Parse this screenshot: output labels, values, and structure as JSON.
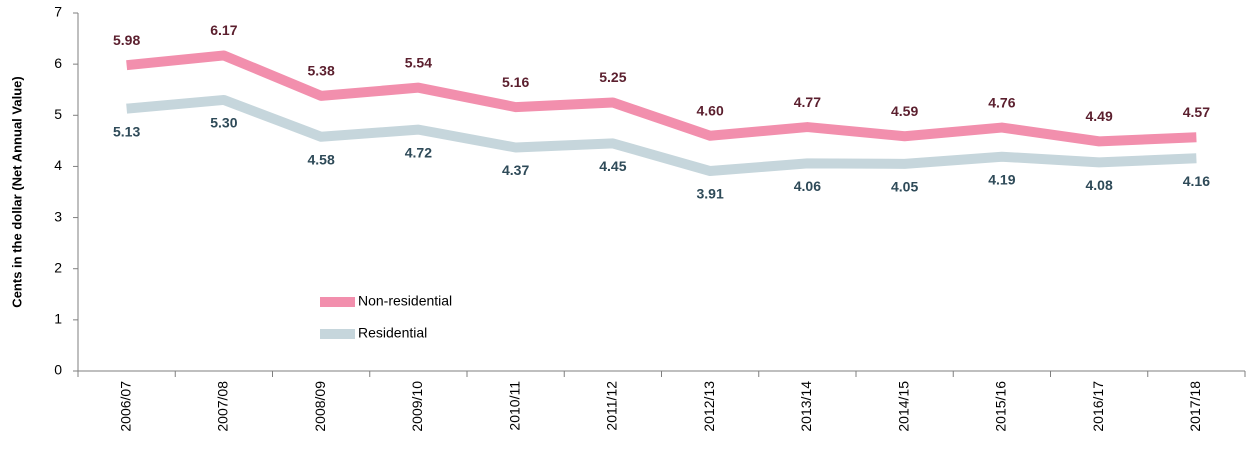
{
  "chart_data": {
    "type": "line",
    "y_label": "Cents in the dollar (Net Annual Value)",
    "categories": [
      "2006/07",
      "2007/08",
      "2008/09",
      "2009/10",
      "2010/11",
      "2011/12",
      "2012/13",
      "2013/14",
      "2014/15",
      "2015/16",
      "2016/17",
      "2017/18"
    ],
    "series": [
      {
        "name": "Non-residential",
        "color": "#f28fad",
        "label_color": "#5b1f2e",
        "values": [
          5.98,
          6.17,
          5.38,
          5.54,
          5.16,
          5.25,
          4.6,
          4.77,
          4.59,
          4.76,
          4.49,
          4.57
        ],
        "value_labels": [
          "5.98",
          "6.17",
          "5.38",
          "5.54",
          "5.16",
          "5.25",
          "4.60",
          "4.77",
          "4.59",
          "4.76",
          "4.49",
          "4.57"
        ]
      },
      {
        "name": "Residential",
        "color": "#c6d6dc",
        "label_color": "#2e4a58",
        "values": [
          5.13,
          5.3,
          4.58,
          4.72,
          4.37,
          4.45,
          3.91,
          4.06,
          4.05,
          4.19,
          4.08,
          4.16
        ],
        "value_labels": [
          "5.13",
          "5.30",
          "4.58",
          "4.72",
          "4.37",
          "4.45",
          "3.91",
          "4.06",
          "4.05",
          "4.19",
          "4.08",
          "4.16"
        ]
      }
    ],
    "ylim": [
      0,
      7
    ],
    "yticks": [
      0,
      1,
      2,
      3,
      4,
      5,
      6,
      7
    ],
    "grid": false
  }
}
